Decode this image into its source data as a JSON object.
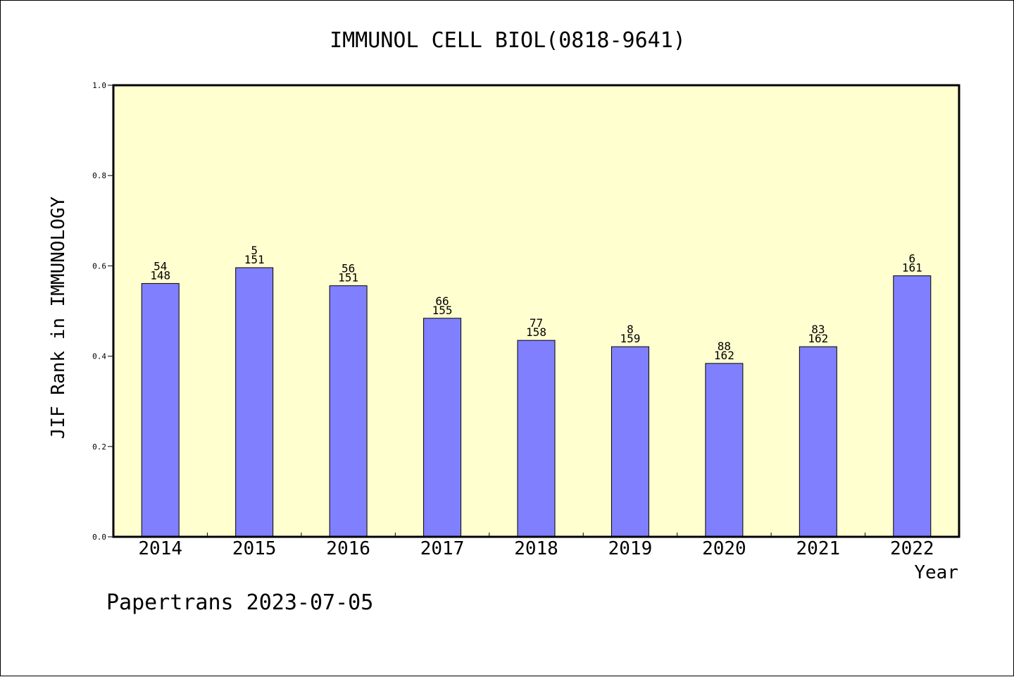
{
  "chart_data": {
    "type": "bar",
    "title": "IMMUNOL CELL BIOL(0818-9641)",
    "xlabel": "Year",
    "ylabel": "JIF Rank in IMMUNOLOGY",
    "ylim": [
      0.0,
      1.0
    ],
    "yticks": [
      "0.0",
      "0.2",
      "0.4",
      "0.6",
      "0.8",
      "1.0"
    ],
    "grid": false,
    "categories": [
      "2014",
      "2015",
      "2016",
      "2017",
      "2018",
      "2019",
      "2020",
      "2021",
      "2022"
    ],
    "values": [
      0.561,
      0.596,
      0.556,
      0.484,
      0.435,
      0.421,
      0.384,
      0.421,
      0.578
    ],
    "rank_labels": [
      "54",
      "5",
      "56",
      "66",
      "77",
      "8",
      "88",
      "83",
      "6"
    ],
    "total_labels": [
      "148",
      "151",
      "151",
      "155",
      "158",
      "159",
      "162",
      "162",
      "161"
    ],
    "plot_background": "#ffffd0",
    "bar_color": "#8080ff"
  },
  "footer": "Papertrans 2023-07-05"
}
